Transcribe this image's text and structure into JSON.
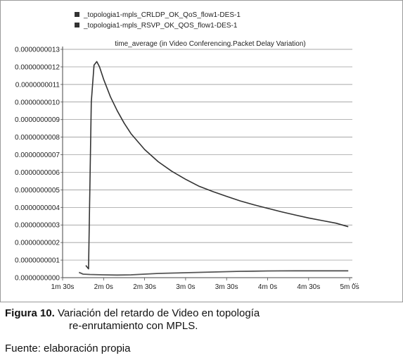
{
  "chart_data": {
    "type": "line",
    "title": "time_average (in Video Conferencing.Packet Delay Variation)",
    "xlabel": "",
    "ylabel": "",
    "x_ticks": [
      {
        "value": 90,
        "label": "1m 30s"
      },
      {
        "value": 120,
        "label": "2m 0s"
      },
      {
        "value": 150,
        "label": "2m 30s"
      },
      {
        "value": 180,
        "label": "3m 0s"
      },
      {
        "value": 210,
        "label": "3m 30s"
      },
      {
        "value": 240,
        "label": "4m 0s"
      },
      {
        "value": 270,
        "label": "4m 30s"
      },
      {
        "value": 300,
        "label": "5m 0s"
      }
    ],
    "x_overflow_mark": "...",
    "y_ticks": [
      "0.0000000000",
      "0.0000000001",
      "0.0000000002",
      "0.0000000003",
      "0.0000000004",
      "0.0000000005",
      "0.0000000006",
      "0.0000000007",
      "0.0000000008",
      "0.0000000009",
      "0.0000000010",
      "0.0000000011",
      "0.0000000012",
      "0.0000000013"
    ],
    "xlim": [
      90,
      302
    ],
    "ylim": [
      0,
      1.3e-09
    ],
    "grid": true,
    "legend_position": "top-left",
    "series": [
      {
        "name": "_topologia1-mpls_CRLDP_OK_QoS_flow1-DES-1",
        "color": "#333333",
        "points": [
          [
            107,
            7e-11
          ],
          [
            109,
            5e-11
          ],
          [
            111,
            1e-09
          ],
          [
            113,
            1.21e-09
          ],
          [
            115,
            1.23e-09
          ],
          [
            117,
            1.2e-09
          ],
          [
            120,
            1.13e-09
          ],
          [
            125,
            1.03e-09
          ],
          [
            130,
            9.5e-10
          ],
          [
            135,
            8.8e-10
          ],
          [
            140,
            8.2e-10
          ],
          [
            150,
            7.3e-10
          ],
          [
            160,
            6.6e-10
          ],
          [
            170,
            6.05e-10
          ],
          [
            180,
            5.6e-10
          ],
          [
            190,
            5.2e-10
          ],
          [
            200,
            4.9e-10
          ],
          [
            210,
            4.63e-10
          ],
          [
            220,
            4.37e-10
          ],
          [
            230,
            4.15e-10
          ],
          [
            240,
            3.95e-10
          ],
          [
            250,
            3.75e-10
          ],
          [
            260,
            3.57e-10
          ],
          [
            270,
            3.4e-10
          ],
          [
            280,
            3.25e-10
          ],
          [
            290,
            3.1e-10
          ],
          [
            299,
            2.9e-10
          ]
        ]
      },
      {
        "name": "_topologia1-mpls_RSVP_OK_QOS_flow1-DES-1",
        "color": "#555555",
        "points": [
          [
            102,
            3e-11
          ],
          [
            105,
            2e-11
          ],
          [
            110,
            1.8e-11
          ],
          [
            120,
            1.6e-11
          ],
          [
            130,
            1.5e-11
          ],
          [
            140,
            1.6e-11
          ],
          [
            150,
            2e-11
          ],
          [
            160,
            2.4e-11
          ],
          [
            170,
            2.6e-11
          ],
          [
            180,
            2.8e-11
          ],
          [
            190,
            3e-11
          ],
          [
            200,
            3.2e-11
          ],
          [
            210,
            3.4e-11
          ],
          [
            220,
            3.6e-11
          ],
          [
            230,
            3.7e-11
          ],
          [
            240,
            3.8e-11
          ],
          [
            250,
            3.85e-11
          ],
          [
            260,
            3.9e-11
          ],
          [
            270,
            3.9e-11
          ],
          [
            280,
            3.9e-11
          ],
          [
            290,
            3.9e-11
          ],
          [
            299,
            3.9e-11
          ]
        ]
      }
    ]
  },
  "caption": {
    "label": "Figura 10.",
    "line1": " Variación del retardo de Video en topología",
    "line2": "re-enrutamiento con MPLS."
  },
  "source": "Fuente: elaboración propia"
}
